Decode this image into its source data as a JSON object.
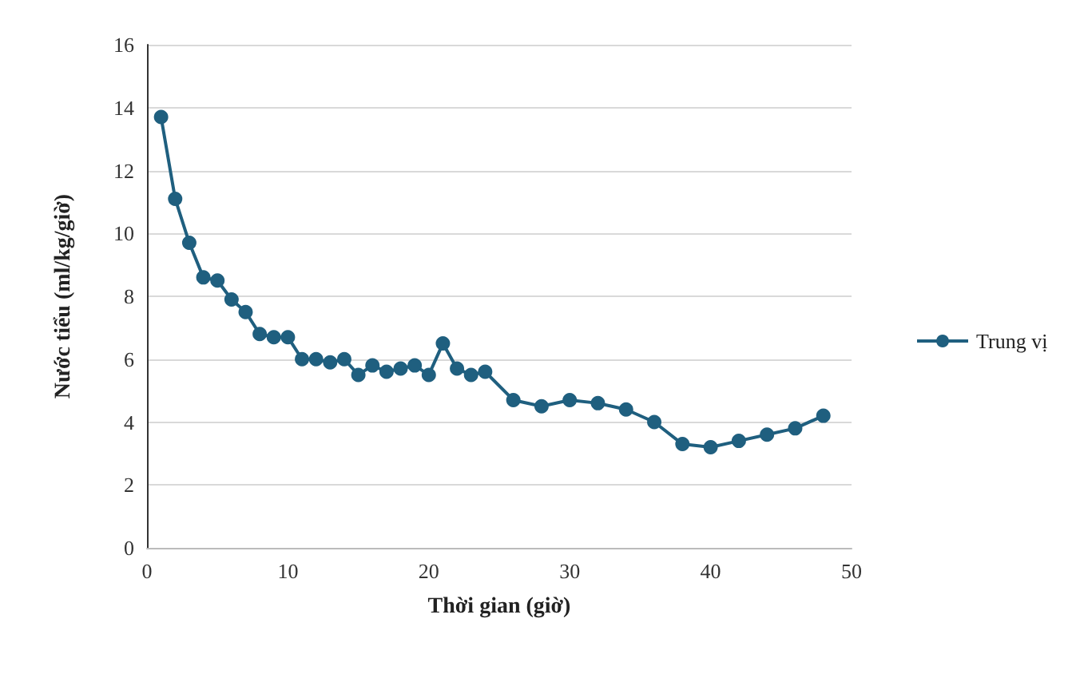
{
  "chart_data": {
    "type": "line",
    "xlabel": "Thời gian (giờ)",
    "ylabel": "Nước tiểu (ml/kg/giờ)",
    "x": [
      1,
      2,
      3,
      4,
      5,
      6,
      7,
      8,
      9,
      10,
      11,
      12,
      13,
      14,
      15,
      16,
      17,
      18,
      19,
      20,
      21,
      22,
      23,
      24,
      26,
      28,
      30,
      32,
      34,
      36,
      38,
      40,
      42,
      44,
      46,
      48
    ],
    "series": [
      {
        "name": "Trung vị",
        "color": "#1f5f7f",
        "values": [
          13.7,
          11.1,
          9.7,
          8.6,
          8.5,
          7.9,
          7.5,
          6.8,
          6.7,
          6.7,
          6.0,
          6.0,
          5.9,
          6.0,
          5.5,
          5.8,
          5.6,
          5.7,
          5.8,
          5.5,
          6.5,
          5.7,
          5.5,
          5.6,
          4.7,
          4.5,
          4.7,
          4.6,
          4.4,
          4.0,
          3.3,
          3.2,
          3.4,
          3.6,
          3.8,
          4.2
        ]
      }
    ],
    "xlim": [
      0,
      50
    ],
    "xticks": [
      0,
      10,
      20,
      30,
      40,
      50
    ],
    "ylim": [
      0,
      16
    ],
    "yticks": [
      0,
      2,
      4,
      6,
      8,
      10,
      12,
      14,
      16
    ],
    "grid": "y",
    "legend": "right",
    "marker": "circle",
    "line_style": "solid"
  }
}
